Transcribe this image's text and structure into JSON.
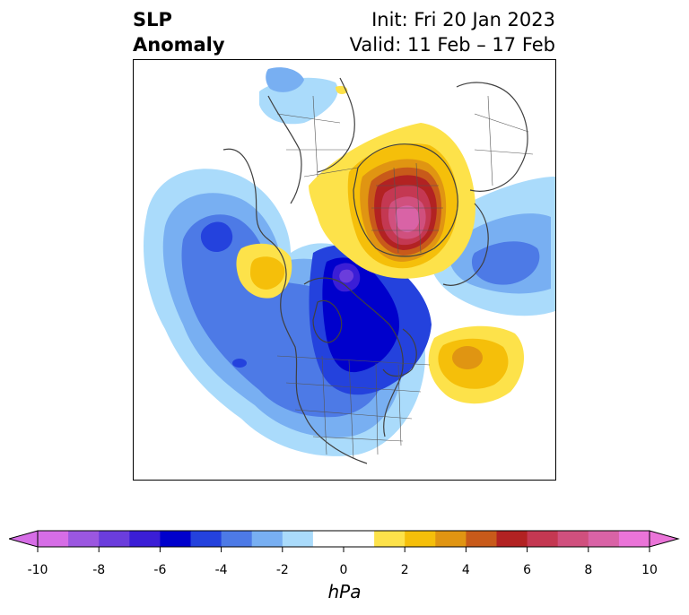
{
  "title": {
    "variable_line1": "SLP",
    "variable_line2": "Anomaly",
    "init_line": "Init: Fri 20 Jan 2023",
    "valid_line": "Valid: 11 Feb – 17 Feb"
  },
  "colorbar": {
    "unit": "hPa",
    "ticks": [
      "-10",
      "-8",
      "-6",
      "-4",
      "-2",
      "0",
      "2",
      "4",
      "6",
      "8",
      "10"
    ],
    "bins": [
      {
        "from": -10,
        "to": -9,
        "color": "#d66de6"
      },
      {
        "from": -9,
        "to": -8,
        "color": "#9b57e0"
      },
      {
        "from": -8,
        "to": -7,
        "color": "#6b3ddc"
      },
      {
        "from": -7,
        "to": -6,
        "color": "#3b1ed6"
      },
      {
        "from": -6,
        "to": -5,
        "color": "#0000cc"
      },
      {
        "from": -5,
        "to": -4,
        "color": "#2442dd"
      },
      {
        "from": -4,
        "to": -3,
        "color": "#4d7ae6"
      },
      {
        "from": -3,
        "to": -2,
        "color": "#78aff2"
      },
      {
        "from": -2,
        "to": -1,
        "color": "#aadbfb"
      },
      {
        "from": -1,
        "to": 1,
        "color": "#ffffff"
      },
      {
        "from": 1,
        "to": 2,
        "color": "#fde24a"
      },
      {
        "from": 2,
        "to": 3,
        "color": "#f5bf0a"
      },
      {
        "from": 3,
        "to": 4,
        "color": "#e09512"
      },
      {
        "from": 4,
        "to": 5,
        "color": "#c85a1a"
      },
      {
        "from": 5,
        "to": 6,
        "color": "#b22222"
      },
      {
        "from": 6,
        "to": 7,
        "color": "#c43852"
      },
      {
        "from": 7,
        "to": 8,
        "color": "#d0507e"
      },
      {
        "from": 8,
        "to": 9,
        "color": "#d963a6"
      },
      {
        "from": 9,
        "to": 10,
        "color": "#ea74d8"
      }
    ],
    "extend_low_color": "#d66de6",
    "extend_high_color": "#ea74d8"
  }
}
